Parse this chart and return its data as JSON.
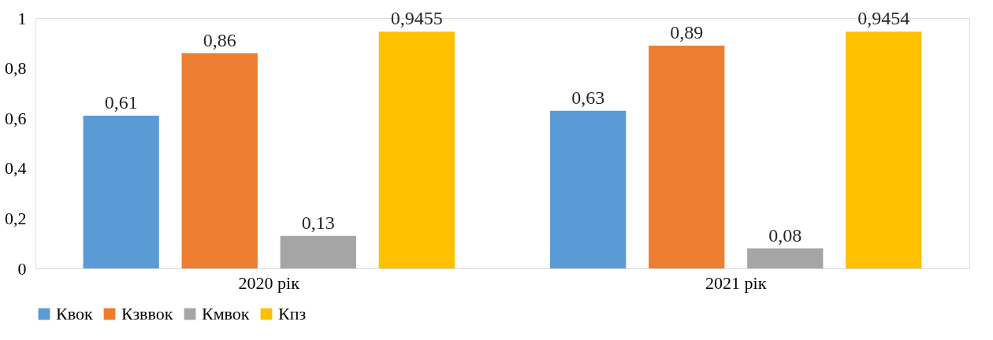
{
  "chart_data": {
    "type": "bar",
    "categories": [
      "2020 рік",
      "2021 рік"
    ],
    "series": [
      {
        "name": "Квок",
        "color": "#5b9bd5",
        "values": [
          0.61,
          0.63
        ],
        "value_labels": [
          "0,61",
          "0,63"
        ]
      },
      {
        "name": "Кзввок",
        "color": "#ed7d31",
        "values": [
          0.86,
          0.89
        ],
        "value_labels": [
          "0,86",
          "0,89"
        ]
      },
      {
        "name": "Кмвок",
        "color": "#a5a5a5",
        "values": [
          0.13,
          0.08
        ],
        "value_labels": [
          "0,13",
          "0,08"
        ]
      },
      {
        "name": "Кпз",
        "color": "#ffc000",
        "values": [
          0.9455,
          0.9454
        ],
        "value_labels": [
          "0,9455",
          "0,9454"
        ]
      }
    ],
    "ylim": [
      0,
      1
    ],
    "yticks": [
      0,
      {
        "value": 0.2,
        "label": "0,2"
      },
      {
        "value": 0.4,
        "label": "0,4"
      },
      {
        "value": 0.6,
        "label": "0,6"
      },
      {
        "value": 0.8,
        "label": "0,8"
      },
      1
    ],
    "grid": false,
    "legend": "bottom"
  }
}
